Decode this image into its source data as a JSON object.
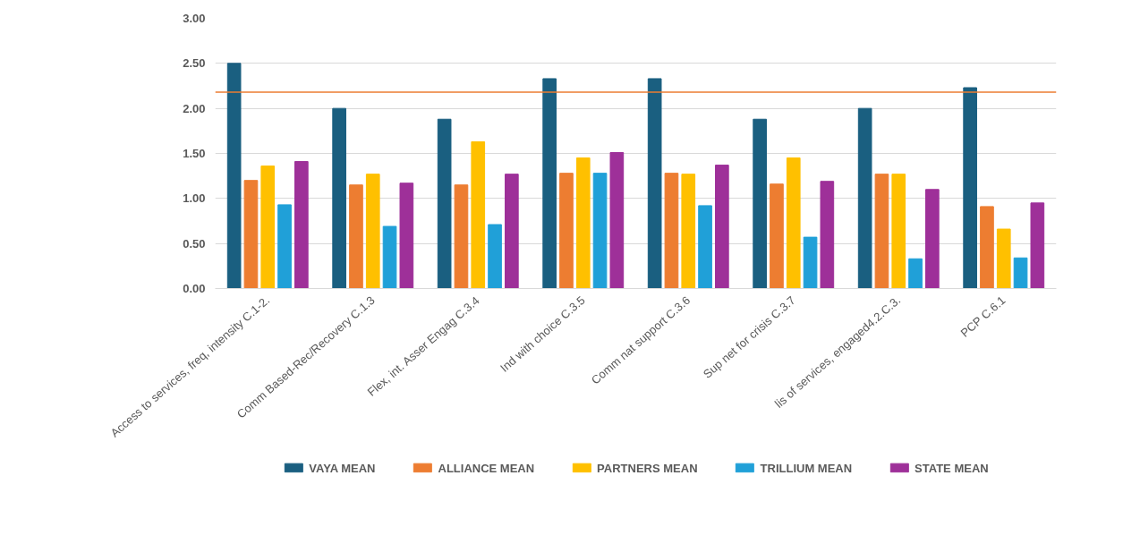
{
  "chart_data": {
    "type": "bar",
    "categories": [
      "Access to services, freq, intensity C.1-2.",
      "Comm Based-Rec/Recovery C.1.3",
      "Flex, int. Asser Engag C.3.4",
      "Ind with choice C.3.5",
      "Comm nat support C.3.6",
      "Sup net for crisis C.3.7",
      "lis of services, engaged4.2.C.3.",
      "PCP C.6.1"
    ],
    "series": [
      {
        "name": "VAYA MEAN",
        "color": "#1a5f80",
        "values": [
          2.5,
          2.0,
          1.88,
          2.33,
          2.33,
          1.88,
          2.0,
          2.23
        ]
      },
      {
        "name": "ALLIANCE MEAN",
        "color": "#ed7d31",
        "values": [
          1.2,
          1.15,
          1.15,
          1.28,
          1.28,
          1.16,
          1.27,
          0.91
        ]
      },
      {
        "name": "PARTNERS MEAN",
        "color": "#ffc000",
        "values": [
          1.36,
          1.27,
          1.63,
          1.45,
          1.27,
          1.45,
          1.27,
          0.66
        ]
      },
      {
        "name": "TRILLIUM MEAN",
        "color": "#20a0d8",
        "values": [
          0.93,
          0.69,
          0.71,
          1.28,
          0.92,
          0.57,
          0.33,
          0.34
        ]
      },
      {
        "name": "STATE MEAN",
        "color": "#9e3099",
        "values": [
          1.41,
          1.17,
          1.27,
          1.51,
          1.37,
          1.19,
          1.1,
          0.95
        ]
      }
    ],
    "ylim": [
      0,
      3
    ],
    "yticks": [
      {
        "value": 0,
        "label": "0.00"
      },
      {
        "value": 0.5,
        "label": "0.50"
      },
      {
        "value": 1,
        "label": "1.00"
      },
      {
        "value": 1.5,
        "label": "1.50"
      },
      {
        "value": 2,
        "label": "2.00"
      },
      {
        "value": 2.5,
        "label": "2.50"
      },
      {
        "value": 3,
        "label": "3.00"
      }
    ],
    "ref_lines": [
      {
        "axis": "y",
        "value": 2.18,
        "color": "#ed7d31"
      }
    ],
    "grid": "y",
    "legend": "bottom"
  }
}
